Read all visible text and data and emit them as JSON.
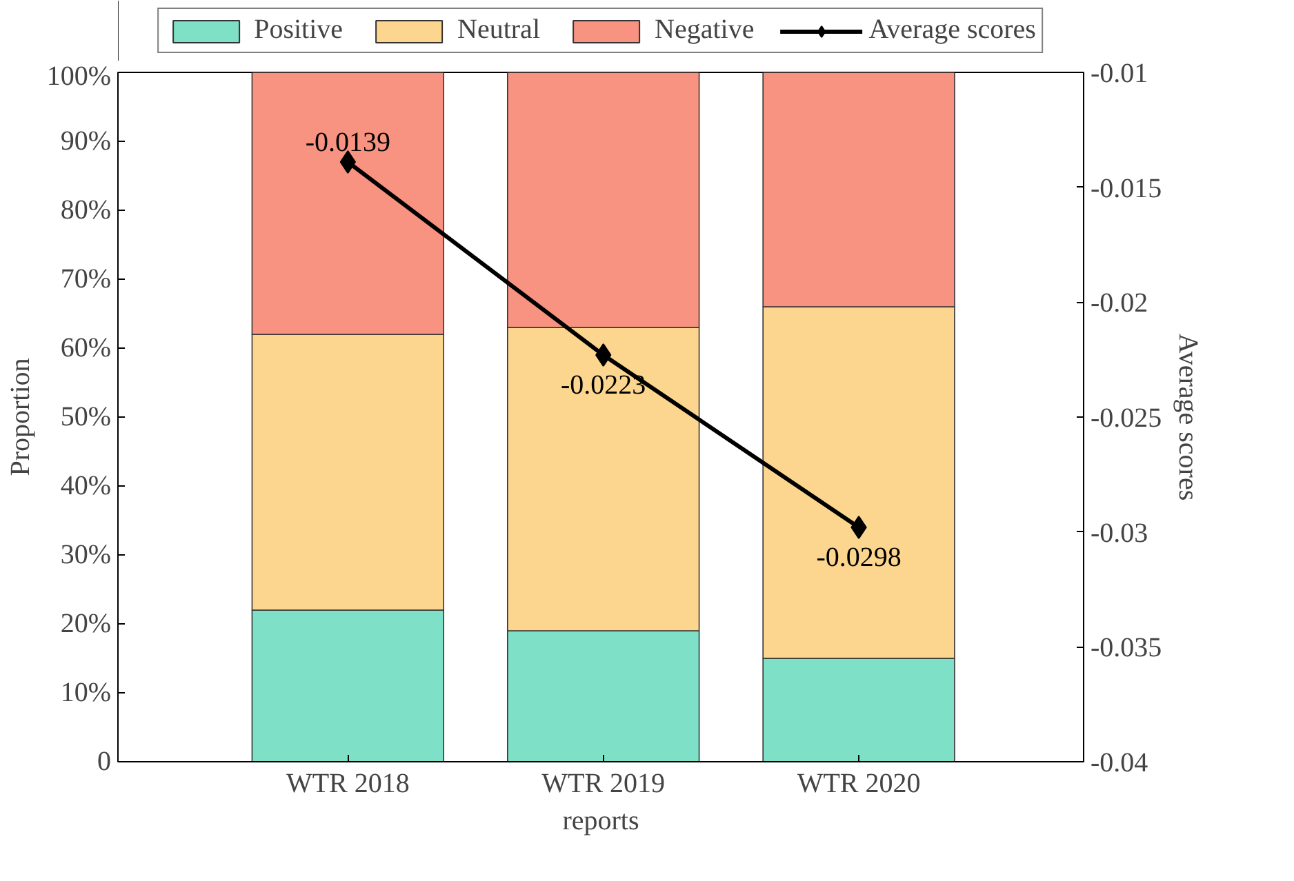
{
  "chart_data": {
    "type": "bar",
    "stacked": true,
    "xlabel": "reports",
    "ylabel": "Proportion",
    "y2label": "Average scores",
    "categories": [
      "WTR 2018",
      "WTR 2019",
      "WTR 2020"
    ],
    "series": [
      {
        "name": "Positive",
        "color": "#7fe0c8",
        "values": [
          22,
          19,
          15
        ]
      },
      {
        "name": "Neutral",
        "color": "#fcd68f",
        "values": [
          40,
          44,
          51
        ]
      },
      {
        "name": "Negative",
        "color": "#f99381",
        "values": [
          38,
          37,
          34
        ]
      },
      {
        "name": "Average scores",
        "type": "line",
        "axis": "y2",
        "color": "#000000",
        "marker": "diamond",
        "values": [
          -0.0139,
          -0.0223,
          -0.0298
        ],
        "value_labels": [
          "-0.0139",
          "-0.0223",
          "-0.0298"
        ]
      }
    ],
    "ylim": [
      0,
      100
    ],
    "yticks": [
      {
        "value": 0,
        "label": "0"
      },
      {
        "value": 10,
        "label": "10%"
      },
      {
        "value": 20,
        "label": "20%"
      },
      {
        "value": 30,
        "label": "30%"
      },
      {
        "value": 40,
        "label": "40%"
      },
      {
        "value": 50,
        "label": "50%"
      },
      {
        "value": 60,
        "label": "60%"
      },
      {
        "value": 70,
        "label": "70%"
      },
      {
        "value": 80,
        "label": "80%"
      },
      {
        "value": 90,
        "label": "90%"
      },
      {
        "value": 100,
        "label": "100%"
      }
    ],
    "y2lim": [
      -0.04,
      -0.01
    ],
    "y2ticks": [
      -0.04,
      -0.035,
      -0.03,
      -0.025,
      -0.02,
      -0.015,
      -0.01
    ],
    "grid": false,
    "legend": "top"
  }
}
